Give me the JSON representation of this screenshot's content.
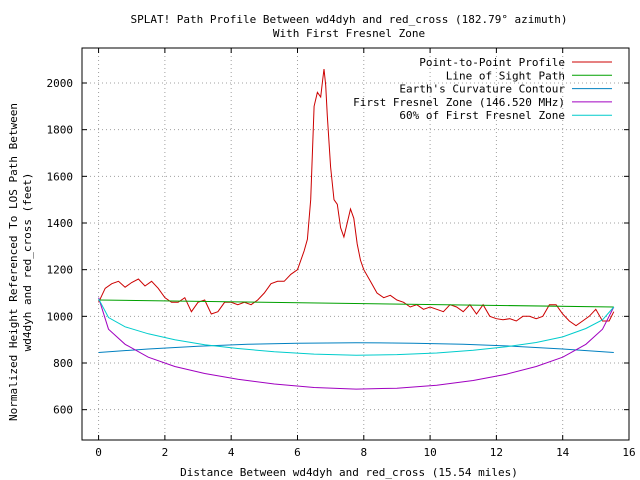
{
  "chart_data": {
    "type": "line",
    "title": "SPLAT! Path Profile Between wd4dyh and red_cross (182.79° azimuth)",
    "subtitle": "With First Fresnel Zone",
    "xlabel": "Distance Between wd4dyh and red_cross (15.54 miles)",
    "ylabel_line1": "Normalized Height Referenced To LOS Path Between",
    "ylabel_line2": "wd4dyh and red_cross (feet)",
    "xlim": [
      -0.5,
      16
    ],
    "ylim": [
      470,
      2150
    ],
    "xticks": [
      0,
      2,
      4,
      6,
      8,
      10,
      12,
      14,
      16
    ],
    "yticks": [
      600,
      800,
      1000,
      1200,
      1400,
      1600,
      1800,
      2000
    ],
    "grid": true,
    "legend_position": "top-right",
    "series": [
      {
        "name": "Point-to-Point Profile",
        "color": "#cc0000",
        "x": [
          0,
          0.2,
          0.4,
          0.6,
          0.8,
          1.0,
          1.2,
          1.4,
          1.6,
          1.8,
          2.0,
          2.2,
          2.4,
          2.6,
          2.8,
          3.0,
          3.2,
          3.4,
          3.6,
          3.8,
          4.0,
          4.2,
          4.4,
          4.6,
          4.8,
          5.0,
          5.2,
          5.4,
          5.6,
          5.8,
          6.0,
          6.2,
          6.3,
          6.4,
          6.5,
          6.6,
          6.7,
          6.75,
          6.8,
          6.85,
          6.9,
          7.0,
          7.1,
          7.2,
          7.3,
          7.4,
          7.5,
          7.6,
          7.7,
          7.8,
          7.9,
          8.0,
          8.2,
          8.4,
          8.6,
          8.8,
          9.0,
          9.2,
          9.4,
          9.6,
          9.8,
          10.0,
          10.2,
          10.4,
          10.6,
          10.8,
          11.0,
          11.2,
          11.4,
          11.6,
          11.8,
          12.0,
          12.2,
          12.4,
          12.6,
          12.8,
          13.0,
          13.2,
          13.4,
          13.6,
          13.8,
          14.0,
          14.2,
          14.4,
          14.6,
          14.8,
          15.0,
          15.2,
          15.4,
          15.54
        ],
        "y": [
          1060,
          1120,
          1140,
          1150,
          1125,
          1145,
          1160,
          1130,
          1150,
          1120,
          1080,
          1060,
          1060,
          1080,
          1020,
          1060,
          1070,
          1010,
          1020,
          1060,
          1060,
          1050,
          1060,
          1050,
          1070,
          1100,
          1140,
          1150,
          1150,
          1180,
          1200,
          1280,
          1330,
          1500,
          1900,
          1960,
          1940,
          2000,
          2060,
          1990,
          1860,
          1640,
          1500,
          1480,
          1380,
          1340,
          1400,
          1460,
          1420,
          1310,
          1240,
          1200,
          1150,
          1100,
          1080,
          1090,
          1070,
          1060,
          1040,
          1050,
          1030,
          1040,
          1030,
          1020,
          1050,
          1040,
          1020,
          1050,
          1010,
          1050,
          1000,
          990,
          985,
          990,
          980,
          1000,
          1000,
          990,
          1000,
          1050,
          1050,
          1010,
          980,
          960,
          980,
          1000,
          1030,
          980,
          980,
          1020
        ]
      },
      {
        "name": "Line of Sight Path",
        "color": "#00a000",
        "x": [
          0,
          15.54
        ],
        "y": [
          1070,
          1040
        ]
      },
      {
        "name": "Earth's Curvature Contour",
        "color": "#0080c0",
        "x": [
          0,
          1.5,
          3.0,
          4.5,
          6.0,
          7.77,
          9.5,
          11.0,
          12.5,
          14.0,
          15.54
        ],
        "y": [
          845,
          860,
          872,
          880,
          885,
          887,
          885,
          880,
          872,
          860,
          845
        ]
      },
      {
        "name": "First Fresnel Zone (146.520 MHz)",
        "color": "#a000c0",
        "x": [
          0,
          0.3,
          0.8,
          1.5,
          2.3,
          3.2,
          4.2,
          5.3,
          6.5,
          7.77,
          9.0,
          10.2,
          11.3,
          12.3,
          13.2,
          14.0,
          14.7,
          15.2,
          15.54
        ],
        "y": [
          1080,
          945,
          880,
          825,
          785,
          755,
          730,
          710,
          695,
          688,
          692,
          705,
          725,
          752,
          785,
          825,
          880,
          945,
          1040
        ]
      },
      {
        "name": "60% of First Fresnel Zone",
        "color": "#00cccc",
        "x": [
          0,
          0.3,
          0.8,
          1.5,
          2.3,
          3.2,
          4.2,
          5.3,
          6.5,
          7.77,
          9.0,
          10.2,
          11.3,
          12.3,
          13.2,
          14.0,
          14.7,
          15.2,
          15.54
        ],
        "y": [
          1075,
          995,
          955,
          925,
          900,
          878,
          862,
          848,
          838,
          833,
          836,
          843,
          855,
          870,
          888,
          912,
          948,
          985,
          1040
        ]
      }
    ]
  }
}
